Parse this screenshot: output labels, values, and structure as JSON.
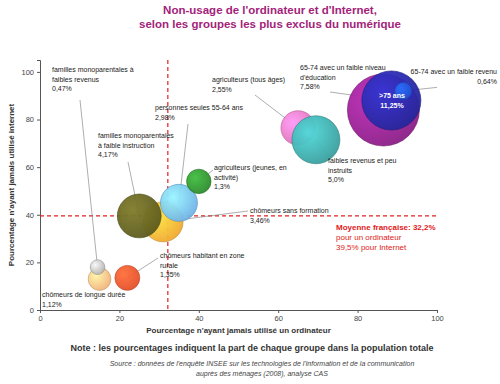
{
  "chart_data": {
    "type": "bubble",
    "title": "Non-usage de l'ordinateur et d'Internet,\nselon les groupes les plus exclus du numérique",
    "x_label": "Pourcentage n'ayant jamais utilisé un ordinateur",
    "y_label": "Pourcentage n'ayant jamais utilisé internet",
    "xlim": [
      0,
      100
    ],
    "ylim": [
      0,
      105
    ],
    "xticks": [
      0,
      20,
      40,
      60,
      80,
      100
    ],
    "yticks": [
      0,
      20,
      40,
      60,
      80,
      100
    ],
    "grid": false,
    "mean": {
      "x": 32.2,
      "y": 39.5
    },
    "annotations": [
      "Moyenne française: 32,2%",
      "pour un ordinateur",
      "39,5% pour Internet"
    ],
    "note": "Note : les pourcentages indiquent la part de chaque groupe dans la population totale",
    "source": "Source : données de l'enquête INSEE sur les technologies de l'information et de la communication\nauprès des ménages (2008), analyse CAS",
    "series": [
      {
        "name": "chômeurs de longue durée",
        "color": "#f2b27a",
        "x": [
          15
        ],
        "values": [
          13
        ],
        "sizes": [
          1.12
        ],
        "size_labels": [
          "1,12%"
        ]
      },
      {
        "name": "familles monoparentales à\nfaibles revenus",
        "color": "#b4b4b4",
        "x": [
          14.5
        ],
        "values": [
          18
        ],
        "sizes": [
          0.47
        ],
        "size_labels": [
          "0,47%"
        ]
      },
      {
        "name": "chômeurs habitant en zone\nrurale",
        "color": "#e4502a",
        "x": [
          22
        ],
        "values": [
          13.5
        ],
        "sizes": [
          1.35
        ],
        "size_labels": [
          "1,35%"
        ]
      },
      {
        "name": "chômeurs sans formation",
        "color": "#f0a830",
        "x": [
          31
        ],
        "values": [
          37
        ],
        "sizes": [
          3.46
        ],
        "size_labels": [
          "3,46%"
        ]
      },
      {
        "name": "familles monoparentales\nà faible instruction",
        "color": "#5c5a1e",
        "x": [
          25
        ],
        "values": [
          39.5
        ],
        "sizes": [
          4.17
        ],
        "size_labels": [
          "4,17%"
        ]
      },
      {
        "name": "personnes seules 55-64 ans",
        "color": "#6fb2e6",
        "x": [
          35
        ],
        "values": [
          45
        ],
        "sizes": [
          2.98
        ],
        "size_labels": [
          "2,98%"
        ]
      },
      {
        "name": "agriculteurs (jeunes, en\nactivité)",
        "color": "#2e8a2e",
        "x": [
          40
        ],
        "values": [
          54
        ],
        "sizes": [
          1.3
        ],
        "size_labels": [
          "1,3%"
        ]
      },
      {
        "name": "agriculteurs (tous âges)",
        "color": "#e070b4",
        "x": [
          65
        ],
        "values": [
          76.5
        ],
        "sizes": [
          2.55
        ],
        "size_labels": [
          "2,55%"
        ]
      },
      {
        "name": "faibles revenus et peu\ninstruits",
        "color": "#3a9e9e",
        "x": [
          69.5
        ],
        "values": [
          71.5
        ],
        "sizes": [
          5.0
        ],
        "size_labels": [
          "5,0%"
        ]
      },
      {
        "name": ">75 ans",
        "color": "#8a1e86",
        "x": [
          86.5
        ],
        "values": [
          84
        ],
        "sizes": [
          11.25
        ],
        "size_labels": [
          "11,25%"
        ]
      },
      {
        "name": "65-74 avec un faible niveau\nd'éducation",
        "color": "#26269a",
        "x": [
          88.5
        ],
        "values": [
          88
        ],
        "sizes": [
          7.58
        ],
        "size_labels": [
          "7,58%"
        ]
      },
      {
        "name": "65-74 avec un faible revenu",
        "color": "#2050d0",
        "x": [
          91.5
        ],
        "values": [
          92
        ],
        "sizes": [
          0.64
        ],
        "size_labels": [
          "0,64%"
        ]
      }
    ]
  }
}
